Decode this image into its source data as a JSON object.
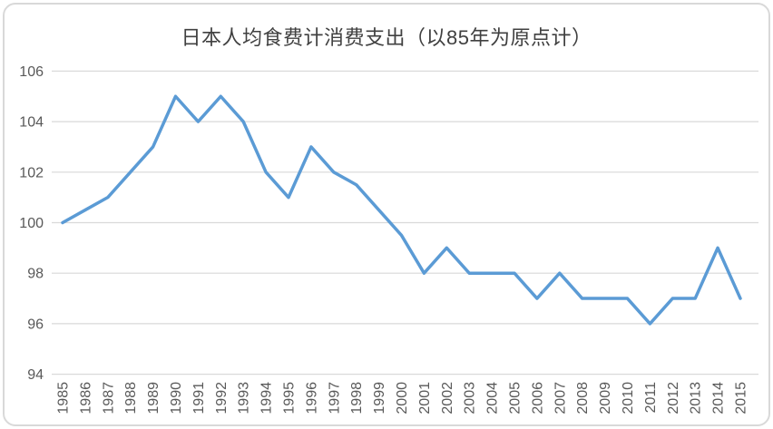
{
  "chart_data": {
    "type": "line",
    "title": "日本人均食费计消费支出（以85年为原点计）",
    "categories": [
      1985,
      1986,
      1987,
      1988,
      1989,
      1990,
      1991,
      1992,
      1993,
      1994,
      1995,
      1996,
      1997,
      1998,
      1999,
      2000,
      2001,
      2002,
      2003,
      2004,
      2005,
      2006,
      2007,
      2008,
      2009,
      2010,
      2011,
      2012,
      2013,
      2014,
      2015
    ],
    "values": [
      100,
      100.5,
      101,
      102,
      103,
      105,
      104,
      105,
      104,
      102,
      101,
      103,
      102,
      101.5,
      100.5,
      99.5,
      98,
      99,
      98,
      98,
      98,
      97,
      98,
      97,
      97,
      97,
      96,
      97,
      97,
      99,
      97
    ],
    "xlabel": "",
    "ylabel": "",
    "ylim": [
      94,
      106
    ],
    "ytick_step": 2,
    "yticks": [
      94,
      96,
      98,
      100,
      102,
      104,
      106
    ],
    "grid": true,
    "legend": false,
    "colors": {
      "line": "#5B9BD5",
      "gridline": "#D9D9D9",
      "axis_labels": "#595959",
      "title": "#404040",
      "frame_border": "#D9D9D9",
      "background": "#FFFFFF"
    }
  }
}
